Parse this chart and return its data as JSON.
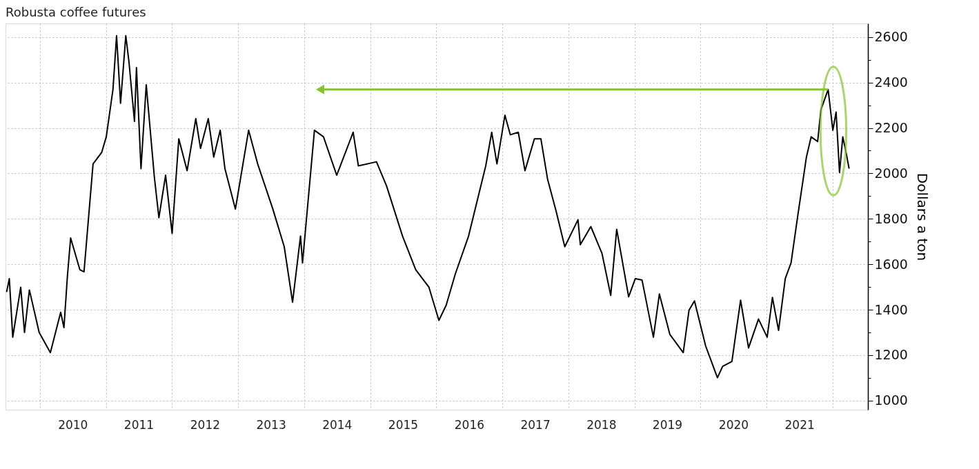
{
  "chart_data": {
    "type": "line",
    "title": "Robusta coffee futures",
    "ylabel": "Dollars a ton",
    "color": "#000000",
    "grid": true,
    "x": [
      "2009-07-01",
      "2009-07-16",
      "2009-08-04",
      "2009-09-17",
      "2009-10-08",
      "2009-11-04",
      "2009-12-28",
      "2010-02-28",
      "2010-04-26",
      "2010-05-14",
      "2010-06-02",
      "2010-06-20",
      "2010-08-10",
      "2010-09-02",
      "2010-10-22",
      "2010-12-09",
      "2011-01-03",
      "2011-02-09",
      "2011-03-01",
      "2011-03-23",
      "2011-04-21",
      "2011-05-09",
      "2011-06-08",
      "2011-06-19",
      "2011-07-14",
      "2011-08-12",
      "2011-09-26",
      "2011-10-21",
      "2011-11-27",
      "2012-01-02",
      "2012-02-08",
      "2012-03-25",
      "2012-05-12",
      "2012-06-07",
      "2012-07-20",
      "2012-08-19",
      "2012-09-24",
      "2012-10-20",
      "2012-12-17",
      "2013-02-28",
      "2013-04-19",
      "2013-07-12",
      "2013-09-13",
      "2013-10-29",
      "2013-12-12",
      "2013-12-23",
      "2014-02-27",
      "2014-04-18",
      "2014-06-30",
      "2014-09-29",
      "2014-10-28",
      "2015-02-05",
      "2015-04-02",
      "2015-06-29",
      "2015-09-10",
      "2015-11-22",
      "2016-01-16",
      "2016-02-25",
      "2016-04-16",
      "2016-06-28",
      "2016-10-01",
      "2016-11-03",
      "2016-12-02",
      "2017-01-15",
      "2017-02-14",
      "2017-03-30",
      "2017-05-06",
      "2017-06-27",
      "2017-08-02",
      "2017-09-08",
      "2017-10-25",
      "2017-12-12",
      "2018-02-23",
      "2018-03-08",
      "2018-05-05",
      "2018-07-06",
      "2018-08-23",
      "2018-09-25",
      "2018-11-30",
      "2019-01-06",
      "2019-02-12",
      "2019-04-16",
      "2019-05-19",
      "2019-07-16",
      "2019-09-28",
      "2019-10-30",
      "2019-11-29",
      "2020-01-30",
      "2020-04-04",
      "2020-05-03",
      "2020-06-23",
      "2020-08-10",
      "2020-09-23",
      "2020-11-17",
      "2021-01-04",
      "2021-02-02",
      "2021-03-08",
      "2021-04-14",
      "2021-05-16",
      "2021-06-22",
      "2021-08-09",
      "2021-09-04",
      "2021-10-10",
      "2021-10-28",
      "2021-12-07",
      "2022-01-02",
      "2022-01-20",
      "2022-02-08",
      "2022-02-26",
      "2022-03-14",
      "2022-04-02"
    ],
    "values": [
      1478,
      1537,
      1279,
      1499,
      1300,
      1487,
      1300,
      1211,
      1389,
      1321,
      1546,
      1716,
      1576,
      1567,
      2042,
      2093,
      2161,
      2369,
      2606,
      2309,
      2606,
      2487,
      2229,
      2466,
      2021,
      2390,
      1983,
      1805,
      1992,
      1736,
      2152,
      2012,
      2241,
      2110,
      2241,
      2072,
      2190,
      2021,
      1843,
      2190,
      2042,
      1843,
      1677,
      1433,
      1724,
      1606,
      2190,
      2161,
      1992,
      2181,
      2033,
      2051,
      1944,
      1724,
      1576,
      1499,
      1353,
      1419,
      1558,
      1724,
      2033,
      2181,
      2042,
      2256,
      2170,
      2181,
      2012,
      2152,
      2152,
      1974,
      1834,
      1677,
      1796,
      1686,
      1766,
      1647,
      1463,
      1754,
      1457,
      1537,
      1531,
      1279,
      1469,
      1291,
      1211,
      1398,
      1439,
      1240,
      1101,
      1151,
      1172,
      1442,
      1232,
      1359,
      1279,
      1454,
      1309,
      1537,
      1606,
      1813,
      2072,
      2161,
      2140,
      2280,
      2369,
      2190,
      2270,
      2004,
      2161,
      2101,
      2021
    ],
    "xlim": [
      "2009-06-25",
      "2022-07-15"
    ],
    "xticks": [
      {
        "value": "2010-01-01",
        "label": null
      },
      {
        "value": "2010-07-01",
        "label": "2010"
      },
      {
        "value": "2011-01-01",
        "label": null
      },
      {
        "value": "2011-07-01",
        "label": "2011"
      },
      {
        "value": "2012-01-01",
        "label": null
      },
      {
        "value": "2012-07-01",
        "label": "2012"
      },
      {
        "value": "2013-01-01",
        "label": null
      },
      {
        "value": "2013-07-01",
        "label": "2013"
      },
      {
        "value": "2014-01-01",
        "label": null
      },
      {
        "value": "2014-07-01",
        "label": "2014"
      },
      {
        "value": "2015-01-01",
        "label": null
      },
      {
        "value": "2015-07-01",
        "label": "2015"
      },
      {
        "value": "2016-01-01",
        "label": null
      },
      {
        "value": "2016-07-01",
        "label": "2016"
      },
      {
        "value": "2017-01-01",
        "label": null
      },
      {
        "value": "2017-07-01",
        "label": "2017"
      },
      {
        "value": "2018-01-01",
        "label": null
      },
      {
        "value": "2018-07-01",
        "label": "2018"
      },
      {
        "value": "2019-01-01",
        "label": null
      },
      {
        "value": "2019-07-01",
        "label": "2019"
      },
      {
        "value": "2020-01-01",
        "label": null
      },
      {
        "value": "2020-07-01",
        "label": "2020"
      },
      {
        "value": "2021-01-01",
        "label": null
      },
      {
        "value": "2021-07-01",
        "label": "2021"
      },
      {
        "value": "2022-01-01",
        "label": null
      }
    ],
    "ylim": [
      960,
      2660
    ],
    "yticks": [
      1000,
      {
        "value": 1100,
        "label": null
      },
      1200,
      {
        "value": 1300,
        "label": null
      },
      1400,
      {
        "value": 1500,
        "label": null
      },
      1600,
      {
        "value": 1700,
        "label": null
      },
      1800,
      {
        "value": 1900,
        "label": null
      },
      2000,
      {
        "value": 2100,
        "label": null
      },
      2200,
      {
        "value": 2300,
        "label": null
      },
      2400,
      {
        "value": 2500,
        "label": null
      },
      2600
    ]
  }
}
